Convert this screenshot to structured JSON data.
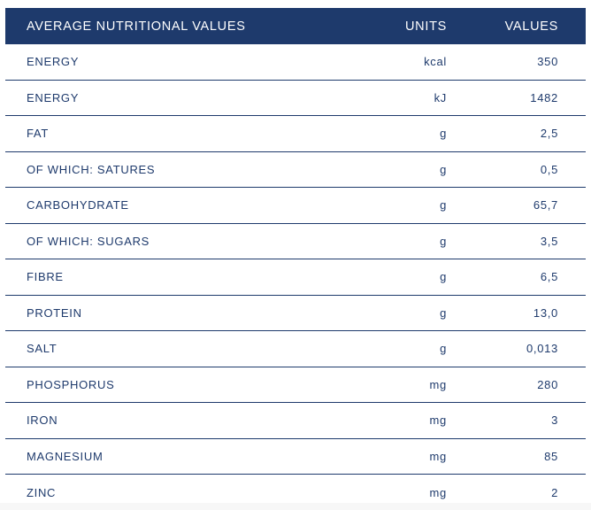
{
  "table": {
    "title": "AVERAGE NUTRITIONAL VALUES",
    "header": {
      "name_label": "AVERAGE NUTRITIONAL VALUES",
      "units_label": "UNITS",
      "values_label": "VALUES"
    },
    "rows": [
      {
        "label": "ENERGY",
        "unit": "kcal",
        "value": "350"
      },
      {
        "label": "ENERGY",
        "unit": "kJ",
        "value": "1482"
      },
      {
        "label": "FAT",
        "unit": "g",
        "value": "2,5"
      },
      {
        "label": "OF WHICH: SATURES",
        "unit": "g",
        "value": "0,5"
      },
      {
        "label": "CARBOHYDRATE",
        "unit": "g",
        "value": "65,7"
      },
      {
        "label": "OF WHICH: SUGARS",
        "unit": "g",
        "value": "3,5"
      },
      {
        "label": "FIBRE",
        "unit": "g",
        "value": "6,5"
      },
      {
        "label": "PROTEIN",
        "unit": "g",
        "value": "13,0"
      },
      {
        "label": "SALT",
        "unit": "g",
        "value": "0,013"
      },
      {
        "label": "PHOSPHORUS",
        "unit": "mg",
        "value": "280"
      },
      {
        "label": "IRON",
        "unit": "mg",
        "value": "3"
      },
      {
        "label": "MAGNESIUM",
        "unit": "mg",
        "value": "85"
      },
      {
        "label": "ZINC",
        "unit": "mg",
        "value": "2"
      }
    ]
  },
  "colors": {
    "header_bg": "#1e3a6c",
    "text": "#1e3a6c",
    "divider": "#1e3a6c",
    "page_bg": "#ffffff",
    "footer_band": "#f7f7f7"
  }
}
